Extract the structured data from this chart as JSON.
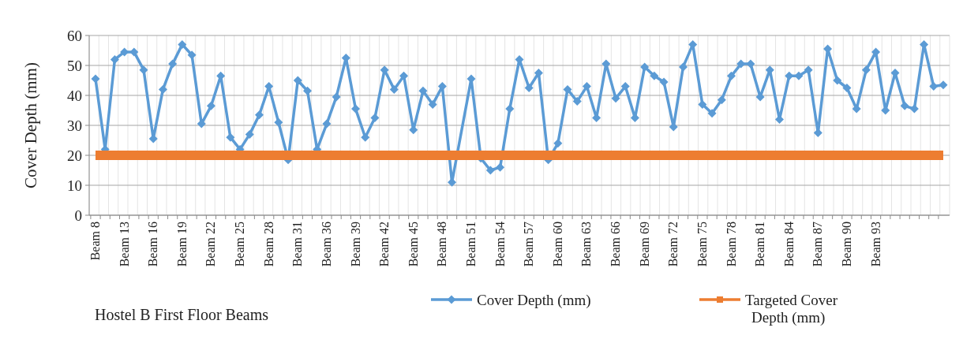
{
  "chart_data": {
    "type": "line",
    "title": "Hostel B First Floor Beams",
    "ylabel": "Cover Depth (mm)",
    "categories": [
      "Beam 8",
      null,
      null,
      "Beam 13",
      null,
      null,
      "Beam 16",
      null,
      null,
      "Beam 19",
      null,
      null,
      "Beam 22",
      null,
      null,
      "Beam 25",
      null,
      null,
      "Beam 28",
      null,
      null,
      "Beam 31",
      null,
      null,
      "Beam 36",
      null,
      null,
      "Beam 39",
      null,
      null,
      "Beam 42",
      null,
      null,
      "Beam 45",
      null,
      null,
      "Beam 48",
      null,
      null,
      "Beam 51",
      null,
      null,
      "Beam 54",
      null,
      null,
      "Beam 57",
      null,
      null,
      "Beam 60",
      null,
      null,
      "Beam 63",
      null,
      null,
      "Beam 66",
      null,
      null,
      "Beam 69",
      null,
      null,
      "Beam 72",
      null,
      null,
      "Beam 75",
      null,
      null,
      "Beam 78",
      null,
      null,
      "Beam 81",
      null,
      null,
      "Beam 84",
      null,
      null,
      "Beam 87",
      null,
      null,
      "Beam 90",
      null,
      null,
      "Beam 93",
      null,
      null,
      null,
      null,
      null,
      null,
      null
    ],
    "series": [
      {
        "name": "Cover Depth (mm)",
        "color": "#5b9bd5",
        "marker": "diamond",
        "values": [
          45.5,
          22,
          52,
          54.5,
          54.5,
          48.5,
          25.5,
          42,
          50.5,
          57,
          53.5,
          30.5,
          36.5,
          46.5,
          26,
          22,
          27,
          33.5,
          43,
          31,
          18.5,
          45,
          41.5,
          22,
          30.5,
          39.5,
          52.5,
          35.5,
          26,
          32.5,
          48.5,
          42,
          46.5,
          28.5,
          41.5,
          37,
          43,
          11,
          null,
          45.5,
          19,
          15,
          16,
          35.5,
          52,
          42.5,
          47.5,
          18.5,
          24,
          42,
          38,
          43,
          32.5,
          50.5,
          39,
          43,
          32.5,
          49.5,
          46.5,
          44.5,
          29.5,
          49.5,
          57,
          37,
          34,
          38.5,
          46.5,
          50.5,
          50.5,
          39.5,
          48.5,
          32,
          46.5,
          46.5,
          48.5,
          27.5,
          55.5,
          45,
          42.5,
          35.5,
          48.5,
          54.5,
          35,
          47.5,
          36.5,
          35.5,
          57,
          43,
          43.5
        ]
      },
      {
        "name": "Targeted Cover Depth (mm)",
        "color": "#ed7d31",
        "marker": "none",
        "values": [
          20,
          20,
          20,
          20,
          20,
          20,
          20,
          20,
          20,
          20,
          20,
          20,
          20,
          20,
          20,
          20,
          20,
          20,
          20,
          20,
          20,
          20,
          20,
          20,
          20,
          20,
          20,
          20,
          20,
          20,
          20,
          20,
          20,
          20,
          20,
          20,
          20,
          20,
          20,
          20,
          20,
          20,
          20,
          20,
          20,
          20,
          20,
          20,
          20,
          20,
          20,
          20,
          20,
          20,
          20,
          20,
          20,
          20,
          20,
          20,
          20,
          20,
          20,
          20,
          20,
          20,
          20,
          20,
          20,
          20,
          20,
          20,
          20,
          20,
          20,
          20,
          20,
          20,
          20,
          20,
          20,
          20,
          20,
          20,
          20,
          20,
          20,
          20,
          20
        ]
      }
    ],
    "ylim": [
      0,
      60
    ],
    "yticks": [
      0,
      10,
      20,
      30,
      40,
      50,
      60
    ],
    "grid": true,
    "legend": "bottom"
  }
}
